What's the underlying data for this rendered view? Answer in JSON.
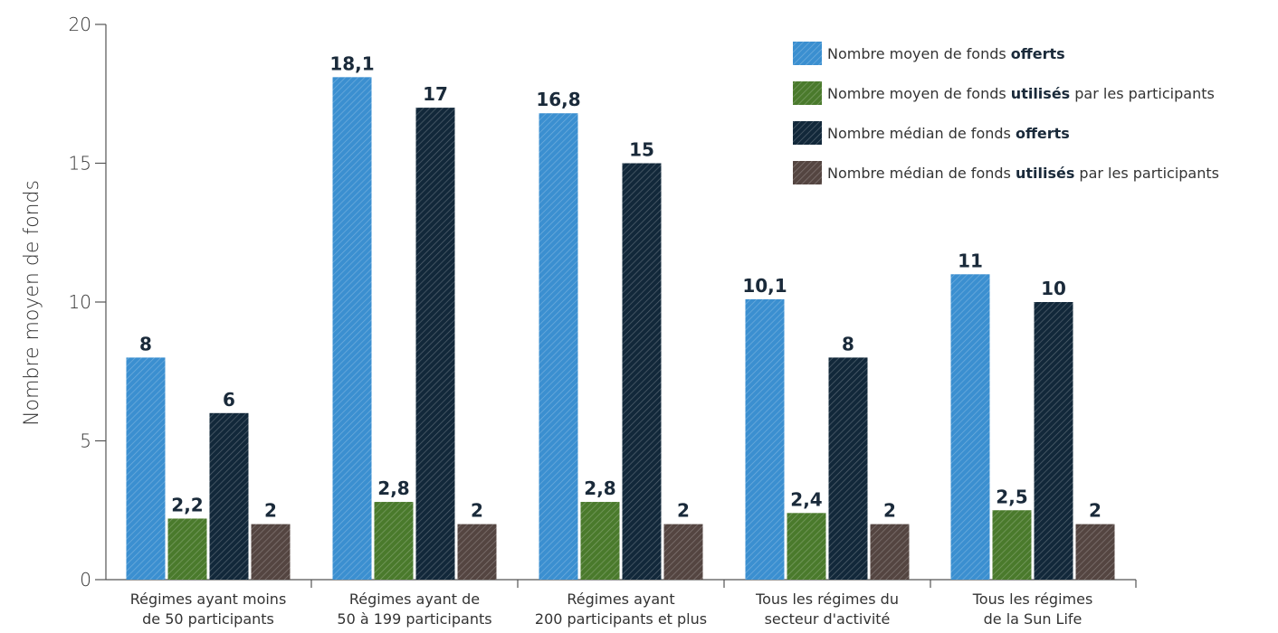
{
  "chart_data": {
    "type": "bar",
    "ylabel": "Nombre moyen de fonds",
    "ylim": [
      0,
      20
    ],
    "yticks": [
      0,
      5,
      10,
      15,
      20
    ],
    "categories": [
      [
        "Régimes ayant moins",
        "de 50 participants"
      ],
      [
        "Régimes ayant de",
        "50 à 199 participants"
      ],
      [
        "Régimes ayant",
        "200 participants et plus"
      ],
      [
        "Tous les régimes du",
        "secteur d'activité"
      ],
      [
        "Tous les régimes",
        "de la Sun Life"
      ]
    ],
    "series": [
      {
        "legend": [
          {
            "text": "Nombre moyen de fonds ",
            "bold": false
          },
          {
            "text": "offerts",
            "bold": true
          }
        ],
        "color": "#3b8fd0",
        "values": [
          8,
          18.1,
          16.8,
          10.1,
          11
        ],
        "labels": [
          "8",
          "18,1",
          "16,8",
          "10,1",
          "11"
        ]
      },
      {
        "legend": [
          {
            "text": "Nombre moyen de fonds ",
            "bold": false
          },
          {
            "text": "utilisés",
            "bold": true
          },
          {
            "text": " par les participants",
            "bold": false
          }
        ],
        "color": "#4a7a2c",
        "values": [
          2.2,
          2.8,
          2.8,
          2.4,
          2.5
        ],
        "labels": [
          "2,2",
          "2,8",
          "2,8",
          "2,4",
          "2,5"
        ]
      },
      {
        "legend": [
          {
            "text": "Nombre médian de fonds ",
            "bold": false
          },
          {
            "text": "offerts",
            "bold": true
          }
        ],
        "color": "#12283a",
        "values": [
          6,
          17,
          15,
          8,
          10
        ],
        "labels": [
          "6",
          "17",
          "15",
          "8",
          "10"
        ]
      },
      {
        "legend": [
          {
            "text": "Nombre médian de fonds ",
            "bold": false
          },
          {
            "text": "utilisés",
            "bold": true
          },
          {
            "text": " par les participants",
            "bold": false
          }
        ],
        "color": "#544541",
        "values": [
          2,
          2,
          2,
          2,
          2
        ],
        "labels": [
          "2",
          "2",
          "2",
          "2",
          "2"
        ]
      }
    ],
    "legend_position": "top-right",
    "grid": false
  }
}
